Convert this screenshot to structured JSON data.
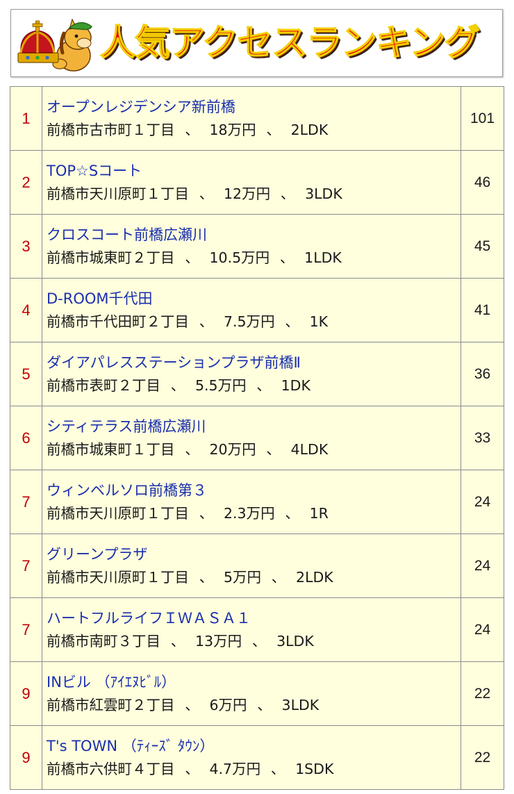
{
  "header": {
    "title": "人気アクセスランキング",
    "mascot_icon": "crown-mascot-icon"
  },
  "colors": {
    "title_fill": "#e8000f",
    "title_outline": "#f3d000",
    "rank_text": "#c00000",
    "name_link": "#1a2fae",
    "table_background": "#ffffdd"
  },
  "separator": "、",
  "rankings": [
    {
      "rank": "1",
      "name": "オープンレジデンシア新前橋",
      "address": "前橋市古市町１丁目",
      "rent": "18万円",
      "layout": "2LDK",
      "count": "101"
    },
    {
      "rank": "2",
      "name": "TOP☆Sコート",
      "address": "前橋市天川原町１丁目",
      "rent": "12万円",
      "layout": "3LDK",
      "count": "46"
    },
    {
      "rank": "3",
      "name": "クロスコート前橋広瀬川",
      "address": "前橋市城東町２丁目",
      "rent": "10.5万円",
      "layout": "1LDK",
      "count": "45"
    },
    {
      "rank": "4",
      "name": "D-ROOM千代田",
      "address": "前橋市千代田町２丁目",
      "rent": "7.5万円",
      "layout": "1K",
      "count": "41"
    },
    {
      "rank": "5",
      "name": "ダイアパレスステーションプラザ前橋Ⅱ",
      "address": "前橋市表町２丁目",
      "rent": "5.5万円",
      "layout": "1DK",
      "count": "36"
    },
    {
      "rank": "6",
      "name": "シティテラス前橋広瀬川",
      "address": "前橋市城東町１丁目",
      "rent": "20万円",
      "layout": "4LDK",
      "count": "33"
    },
    {
      "rank": "7",
      "name": "ウィンベルソロ前橋第３",
      "address": "前橋市天川原町１丁目",
      "rent": "2.3万円",
      "layout": "1R",
      "count": "24"
    },
    {
      "rank": "7",
      "name": "グリーンプラザ",
      "address": "前橋市天川原町１丁目",
      "rent": "5万円",
      "layout": "2LDK",
      "count": "24"
    },
    {
      "rank": "7",
      "name": "ハートフルライフＩＷＡＳＡ１",
      "address": "前橋市南町３丁目",
      "rent": "13万円",
      "layout": "3LDK",
      "count": "24"
    },
    {
      "rank": "9",
      "name": "INビル （ｱｲｴﾇﾋﾞﾙ）",
      "address": "前橋市紅雲町２丁目",
      "rent": "6万円",
      "layout": "3LDK",
      "count": "22"
    },
    {
      "rank": "9",
      "name": "T's TOWN （ﾃｨｰｽﾞ ﾀｳﾝ）",
      "address": "前橋市六供町４丁目",
      "rent": "4.7万円",
      "layout": "1SDK",
      "count": "22"
    }
  ]
}
